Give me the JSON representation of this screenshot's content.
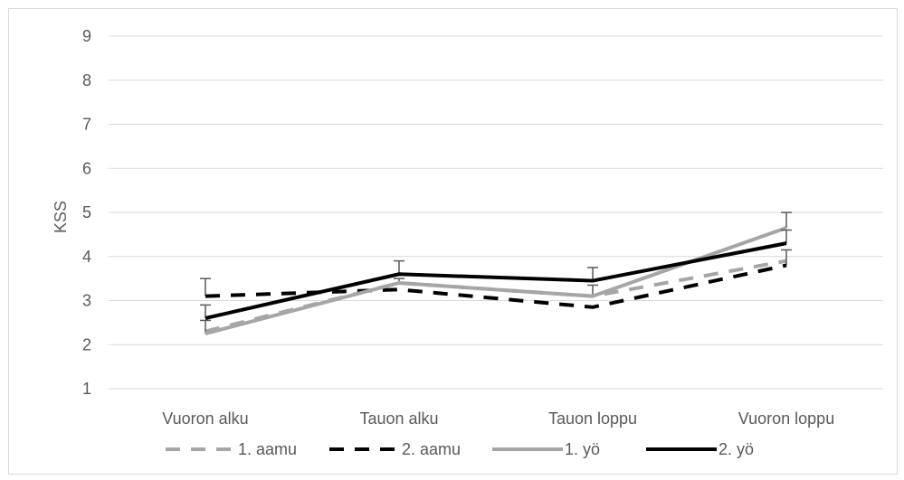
{
  "chart_data": {
    "type": "line",
    "title": "",
    "xlabel": "",
    "ylabel": "KSS",
    "ylim": [
      1,
      9
    ],
    "yticks": [
      1,
      2,
      3,
      4,
      5,
      6,
      7,
      8,
      9
    ],
    "categories": [
      "Vuoron alku",
      "Tauon alku",
      "Tauon loppu",
      "Vuoron loppu"
    ],
    "grid": true,
    "legend_position": "bottom",
    "series": [
      {
        "name": "1. aamu",
        "values": [
          2.3,
          3.4,
          3.1,
          3.9
        ],
        "color": "#a6a6a6",
        "dash": true,
        "error": [
          0,
          0,
          0,
          0
        ]
      },
      {
        "name": "2. aamu",
        "values": [
          3.1,
          3.25,
          2.85,
          3.8
        ],
        "color": "#000000",
        "dash": true,
        "error": [
          0.4,
          0,
          0,
          0.35
        ]
      },
      {
        "name": "1. yö",
        "values": [
          2.25,
          3.4,
          3.1,
          4.65
        ],
        "color": "#a6a6a6",
        "dash": false,
        "error": [
          0.3,
          0.1,
          0.25,
          0.35
        ]
      },
      {
        "name": "2. yö",
        "values": [
          2.6,
          3.6,
          3.45,
          4.3
        ],
        "color": "#000000",
        "dash": false,
        "error": [
          0.3,
          0.3,
          0.3,
          0.3
        ]
      }
    ]
  }
}
